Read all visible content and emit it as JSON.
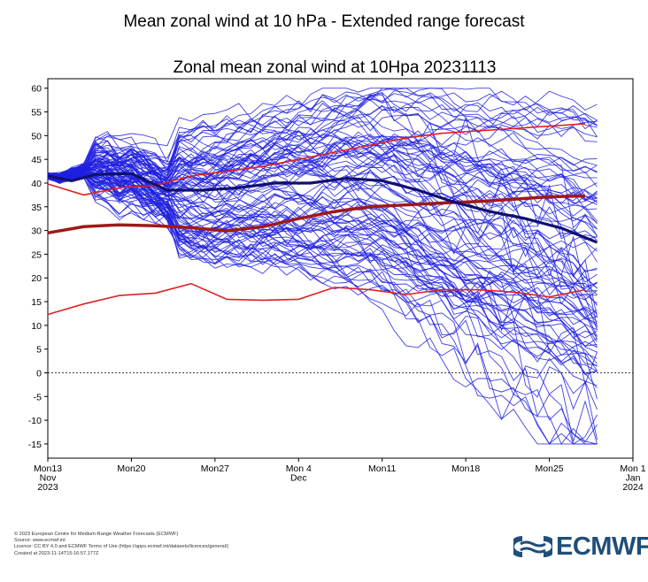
{
  "page": {
    "title": "Mean zonal wind at 10 hPa - Extended range forecast"
  },
  "footer": {
    "lines": [
      "© 2023 European Centre for Medium-Range Weather Forecasts (ECMWF)",
      "Source: www.ecmwf.int",
      "Licence: CC BY 4.0 and ECMWF Terms of Use (https://apps.ecmwf.int/datasets/licences/general/)",
      "Created at 2023-11-14T15:16:57.177Z"
    ]
  },
  "logo": {
    "text": "ECMWF",
    "color": "#1f4e79"
  },
  "colors": {
    "ensemble": "#2020e0",
    "climatology": "#e02020",
    "climatology_mean": "#a01818",
    "ens_mean": "#101070"
  },
  "chart_data": {
    "type": "line",
    "title": "Zonal mean zonal wind at 10Hpa 20231113",
    "xlabel": "",
    "ylabel": "",
    "ylim": [
      -18,
      62
    ],
    "xlim": [
      "2023-11-13",
      "2024-01-01"
    ],
    "yticks": [
      60,
      55,
      50,
      45,
      40,
      35,
      30,
      25,
      20,
      15,
      10,
      5,
      0,
      -5,
      -10,
      -15
    ],
    "xticks": [
      {
        "date": "2023-11-13",
        "label": [
          "Mon13",
          "Nov",
          "2023"
        ]
      },
      {
        "date": "2023-11-20",
        "label": [
          "Mon20"
        ]
      },
      {
        "date": "2023-11-27",
        "label": [
          "Mon27"
        ]
      },
      {
        "date": "2023-12-04",
        "label": [
          "Mon 4",
          "Dec"
        ]
      },
      {
        "date": "2023-12-11",
        "label": [
          "Mon11"
        ]
      },
      {
        "date": "2023-12-18",
        "label": [
          "Mon18"
        ]
      },
      {
        "date": "2023-12-25",
        "label": [
          "Mon25"
        ]
      },
      {
        "date": "2024-01-01",
        "label": [
          "Mon 1",
          "Jan",
          "2024"
        ]
      }
    ],
    "zero_line": 0,
    "grid": false,
    "climatology": {
      "dates": [
        "2023-11-13",
        "2023-11-16",
        "2023-11-19",
        "2023-11-22",
        "2023-11-25",
        "2023-11-28",
        "2023-12-01",
        "2023-12-04",
        "2023-12-07",
        "2023-12-10",
        "2023-12-13",
        "2023-12-16",
        "2023-12-19",
        "2023-12-22",
        "2023-12-25",
        "2023-12-28"
      ],
      "max": [
        39.8,
        37.5,
        39.0,
        39.5,
        41.5,
        42.5,
        43.5,
        45.0,
        46.5,
        48.0,
        49.5,
        50.5,
        51.0,
        51.5,
        52.0,
        52.5
      ],
      "mean": [
        29.5,
        30.8,
        31.2,
        31.0,
        30.6,
        29.9,
        30.8,
        32.5,
        34.0,
        35.0,
        35.4,
        35.8,
        36.1,
        36.6,
        37.1,
        37.3
      ],
      "min": [
        12.3,
        14.5,
        16.3,
        16.8,
        18.8,
        15.5,
        15.3,
        15.5,
        18.0,
        17.5,
        16.5,
        17.5,
        17.5,
        17.0,
        16.0,
        17.5
      ]
    },
    "ensemble_mean": {
      "dates": [
        "2023-11-13",
        "2023-11-15",
        "2023-11-17",
        "2023-11-20",
        "2023-11-23",
        "2023-11-26",
        "2023-11-29",
        "2023-12-02",
        "2023-12-05",
        "2023-12-08",
        "2023-12-11",
        "2023-12-14",
        "2023-12-17",
        "2023-12-20",
        "2023-12-23",
        "2023-12-26",
        "2023-12-29"
      ],
      "values": [
        41.5,
        40.5,
        41.8,
        42.0,
        38.5,
        38.5,
        39.0,
        40.0,
        40.0,
        41.0,
        40.5,
        38.5,
        36.0,
        34.0,
        32.5,
        30.5,
        27.5
      ]
    },
    "ensemble_members": {
      "count": 100,
      "start_date": "2023-11-13",
      "end_date": "2023-12-29",
      "initial_value": 41.5,
      "range_at_end": [
        -12,
        59
      ]
    }
  }
}
